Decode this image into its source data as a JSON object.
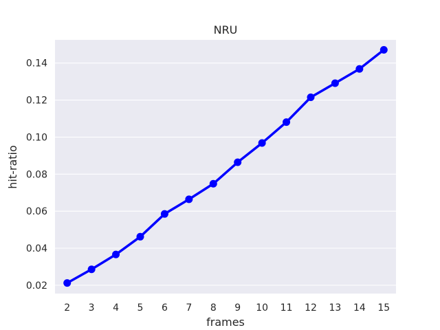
{
  "chart_data": {
    "type": "line",
    "title": "NRU",
    "xlabel": "frames",
    "ylabel": "hit-ratio",
    "x": [
      2,
      3,
      4,
      5,
      6,
      7,
      8,
      9,
      10,
      11,
      12,
      13,
      14,
      15
    ],
    "series": [
      {
        "values": [
          0.0212,
          0.0286,
          0.0366,
          0.0462,
          0.0585,
          0.0664,
          0.0748,
          0.0864,
          0.0968,
          0.1081,
          0.1215,
          0.1291,
          0.1368,
          0.1471
        ]
      }
    ],
    "ylim": [
      0.0155,
      0.1525
    ],
    "yticks": [
      0.02,
      0.04,
      0.06,
      0.08,
      0.1,
      0.12,
      0.14
    ],
    "ytick_labels": [
      "0.02",
      "0.04",
      "0.06",
      "0.08",
      "0.10",
      "0.12",
      "0.14"
    ],
    "grid": true,
    "legend": "none",
    "colors": {
      "line": "#0000ff",
      "background": "#eaeaf2",
      "grid": "#ffffff",
      "text": "#262626"
    }
  }
}
